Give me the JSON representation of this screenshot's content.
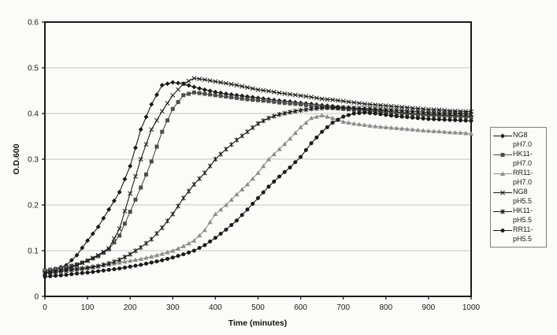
{
  "chart_data": {
    "type": "line",
    "title": "",
    "xlabel": "Time (minutes)",
    "ylabel": "O.D.600",
    "xlim": [
      0,
      1000
    ],
    "ylim": [
      0,
      0.6
    ],
    "xtick_values": [
      0,
      100,
      200,
      300,
      400,
      500,
      600,
      700,
      800,
      900,
      1000
    ],
    "xtick_labels": [
      "0",
      "100",
      "200",
      "300",
      "400",
      "500",
      "600",
      "700",
      "800",
      "900",
      "1000"
    ],
    "ytick_values": [
      0,
      0.1,
      0.2,
      0.3,
      0.4,
      0.5,
      0.6
    ],
    "ytick_labels": [
      "0",
      "0.1",
      "0.2",
      "0.3",
      "0.4",
      "0.5",
      "0.6"
    ],
    "grid": "horizontal-light-gray",
    "legend_position": "right-outside",
    "axis_color": "#1b1b1b",
    "grid_color": "#c4c4c0",
    "x": [
      0,
      25,
      50,
      75,
      100,
      125,
      150,
      175,
      200,
      225,
      250,
      275,
      300,
      325,
      350,
      375,
      400,
      425,
      450,
      475,
      500,
      525,
      550,
      575,
      600,
      625,
      650,
      675,
      700,
      725,
      750,
      775,
      800,
      825,
      850,
      875,
      900,
      925,
      950,
      975,
      1000
    ],
    "series": [
      {
        "name": "NG8 pH7.0",
        "label_lines": [
          "NG8",
          "pH7.0"
        ],
        "marker": "diamond",
        "color": "#1a1a1a",
        "values": [
          0.055,
          0.06,
          0.068,
          0.09,
          0.122,
          0.152,
          0.19,
          0.228,
          0.285,
          0.365,
          0.42,
          0.462,
          0.468,
          0.465,
          0.458,
          0.452,
          0.447,
          0.443,
          0.44,
          0.437,
          0.434,
          0.431,
          0.428,
          0.426,
          0.423,
          0.421,
          0.418,
          0.416,
          0.413,
          0.411,
          0.409,
          0.407,
          0.405,
          0.403,
          0.401,
          0.4,
          0.398,
          0.397,
          0.396,
          0.395,
          0.394
        ]
      },
      {
        "name": "HK11-pH7.0",
        "label_lines": [
          "HK11-",
          "pH7.0"
        ],
        "marker": "square",
        "color": "#4d4d4d",
        "values": [
          0.057,
          0.06,
          0.064,
          0.07,
          0.078,
          0.088,
          0.103,
          0.133,
          0.185,
          0.238,
          0.295,
          0.36,
          0.41,
          0.44,
          0.446,
          0.443,
          0.44,
          0.437,
          0.434,
          0.431,
          0.429,
          0.427,
          0.424,
          0.422,
          0.42,
          0.417,
          0.415,
          0.412,
          0.41,
          0.408,
          0.406,
          0.404,
          0.402,
          0.4,
          0.399,
          0.397,
          0.396,
          0.395,
          0.394,
          0.393,
          0.392
        ]
      },
      {
        "name": "RR11-pH7.0",
        "label_lines": [
          "RR11-",
          "pH7.0"
        ],
        "marker": "triangle",
        "color": "#8c8c8c",
        "values": [
          0.055,
          0.057,
          0.059,
          0.062,
          0.064,
          0.067,
          0.07,
          0.074,
          0.078,
          0.082,
          0.087,
          0.093,
          0.1,
          0.11,
          0.122,
          0.145,
          0.18,
          0.2,
          0.223,
          0.245,
          0.27,
          0.3,
          0.322,
          0.345,
          0.37,
          0.39,
          0.396,
          0.39,
          0.382,
          0.378,
          0.375,
          0.372,
          0.37,
          0.368,
          0.366,
          0.364,
          0.362,
          0.361,
          0.359,
          0.358,
          0.356
        ]
      },
      {
        "name": "NG8 pH5.5",
        "label_lines": [
          "NG8",
          "pH5.5"
        ],
        "marker": "x",
        "color": "#1a1a1a",
        "values": [
          0.052,
          0.056,
          0.06,
          0.068,
          0.078,
          0.09,
          0.105,
          0.148,
          0.225,
          0.3,
          0.365,
          0.405,
          0.44,
          0.465,
          0.477,
          0.474,
          0.47,
          0.466,
          0.462,
          0.457,
          0.452,
          0.449,
          0.445,
          0.442,
          0.439,
          0.436,
          0.432,
          0.43,
          0.427,
          0.424,
          0.421,
          0.419,
          0.417,
          0.415,
          0.413,
          0.411,
          0.409,
          0.408,
          0.406,
          0.405,
          0.404
        ]
      },
      {
        "name": "HK11-pH5.5",
        "label_lines": [
          "HK11-",
          "pH5.5"
        ],
        "marker": "asterisk",
        "color": "#1a1a1a",
        "values": [
          0.05,
          0.053,
          0.056,
          0.059,
          0.062,
          0.066,
          0.072,
          0.08,
          0.092,
          0.107,
          0.125,
          0.15,
          0.18,
          0.215,
          0.245,
          0.27,
          0.3,
          0.322,
          0.342,
          0.36,
          0.378,
          0.39,
          0.398,
          0.403,
          0.407,
          0.41,
          0.412,
          0.413,
          0.413,
          0.412,
          0.411,
          0.41,
          0.408,
          0.407,
          0.405,
          0.404,
          0.402,
          0.401,
          0.4,
          0.399,
          0.398
        ]
      },
      {
        "name": "RR11-pH5.5",
        "label_lines": [
          "RR11-",
          "pH5.5"
        ],
        "marker": "circle",
        "color": "#1a1a1a",
        "values": [
          0.043,
          0.045,
          0.047,
          0.05,
          0.052,
          0.055,
          0.058,
          0.061,
          0.065,
          0.069,
          0.074,
          0.079,
          0.085,
          0.092,
          0.1,
          0.112,
          0.128,
          0.146,
          0.166,
          0.19,
          0.215,
          0.24,
          0.262,
          0.282,
          0.305,
          0.335,
          0.36,
          0.38,
          0.393,
          0.4,
          0.402,
          0.4,
          0.397,
          0.394,
          0.392,
          0.39,
          0.388,
          0.387,
          0.386,
          0.385,
          0.384
        ]
      }
    ]
  }
}
